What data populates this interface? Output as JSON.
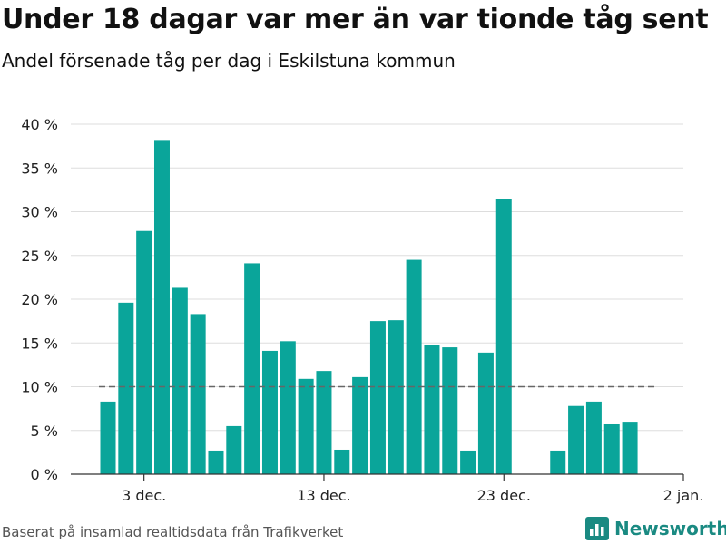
{
  "title": "Under 18 dagar var mer än var tionde tåg sent",
  "subtitle": "Andel försenade tåg per dag i Eskilstuna kommun",
  "source": "Baserat på insamlad realtidsdata från Trafikverket",
  "brand": {
    "name": "Newsworthy",
    "icon": "bar-chart-logo-icon"
  },
  "colors": {
    "bar": "#0aa59a",
    "reference_line": "#666666",
    "grid": "#dddddd",
    "brand": "#1a8a82"
  },
  "chart_data": {
    "type": "bar",
    "x_tick_labels": [
      {
        "day": 3,
        "label": "3 dec."
      },
      {
        "day": 13,
        "label": "13 dec."
      },
      {
        "day": 23,
        "label": "23 dec."
      },
      {
        "day": 33,
        "label": "2 jan."
      }
    ],
    "y_tick_labels": [
      "0 %",
      "5 %",
      "10 %",
      "15 %",
      "20 %",
      "25 %",
      "30 %",
      "35 %",
      "40 %"
    ],
    "y_ticks": [
      0,
      5,
      10,
      15,
      20,
      25,
      30,
      35,
      40
    ],
    "ylim": [
      0,
      40
    ],
    "days": [
      1,
      2,
      3,
      4,
      5,
      6,
      7,
      8,
      9,
      10,
      11,
      12,
      13,
      14,
      15,
      16,
      17,
      18,
      19,
      20,
      21,
      22,
      23,
      24,
      25,
      26,
      27,
      28,
      29,
      30
    ],
    "values": [
      8.3,
      19.6,
      27.8,
      38.2,
      21.3,
      18.3,
      2.7,
      5.5,
      24.1,
      14.1,
      15.2,
      10.9,
      11.8,
      2.8,
      11.1,
      17.5,
      17.6,
      24.5,
      14.8,
      14.5,
      2.7,
      13.9,
      31.4,
      null,
      null,
      2.7,
      7.8,
      8.3,
      5.7,
      6.0
    ],
    "reference_line": {
      "value": 10,
      "style": "dashed"
    },
    "grid": true,
    "legend": false
  }
}
